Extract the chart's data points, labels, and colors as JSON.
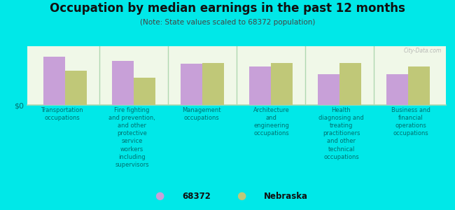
{
  "title": "Occupation by median earnings in the past 12 months",
  "subtitle": "(Note: State values scaled to 68372 population)",
  "background_color": "#00e8e8",
  "plot_bg_top": "#f0f8e8",
  "plot_bg_bottom": "#e0f0d0",
  "categories": [
    "Transportation\noccupations",
    "Fire fighting\nand prevention,\nand other\nprotective\nservice\nworkers\nincluding\nsupervisors",
    "Management\noccupations",
    "Architecture\nand\nengineering\noccupations",
    "Health\ndiagnosing and\ntreating\npractitioners\nand other\ntechnical\noccupations",
    "Business and\nfinancial\noperations\noccupations"
  ],
  "series_68372": [
    0.82,
    0.75,
    0.7,
    0.65,
    0.52,
    0.52
  ],
  "series_nebraska": [
    0.58,
    0.46,
    0.72,
    0.72,
    0.72,
    0.65
  ],
  "color_68372": "#c8a0d8",
  "color_nebraska": "#c0c878",
  "legend_label_1": "68372",
  "legend_label_2": "Nebraska",
  "watermark": "City-Data.com",
  "bar_width": 0.32,
  "sep_color": "#b0d8b0",
  "axis_label_color": "#007070",
  "title_color": "#111111",
  "subtitle_color": "#444444"
}
